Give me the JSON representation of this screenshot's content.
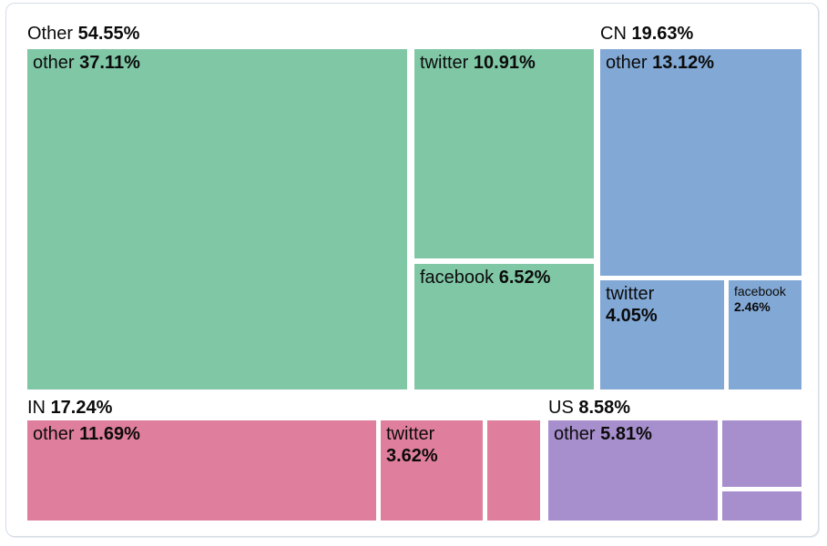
{
  "chart_data": {
    "type": "treemap",
    "title": "",
    "legend": "none",
    "groups": [
      {
        "name": "Other",
        "pct": "54.55%",
        "value": 54.55,
        "color": "#80c7a6",
        "children": [
          {
            "name": "other",
            "pct": "37.11%",
            "value": 37.11
          },
          {
            "name": "twitter",
            "pct": "10.91%",
            "value": 10.91
          },
          {
            "name": "facebook",
            "pct": "6.52%",
            "value": 6.52
          }
        ]
      },
      {
        "name": "CN",
        "pct": "19.63%",
        "value": 19.63,
        "color": "#82a8d5",
        "children": [
          {
            "name": "other",
            "pct": "13.12%",
            "value": 13.12
          },
          {
            "name": "twitter",
            "pct": "4.05%",
            "value": 4.05
          },
          {
            "name": "facebook",
            "pct": "2.46%",
            "value": 2.46
          }
        ]
      },
      {
        "name": "IN",
        "pct": "17.24%",
        "value": 17.24,
        "color": "#e07f9d",
        "children": [
          {
            "name": "other",
            "pct": "11.69%",
            "value": 11.69
          },
          {
            "name": "twitter",
            "pct": "3.62%",
            "value": 3.62
          },
          {
            "name": "",
            "pct": ""
          }
        ]
      },
      {
        "name": "US",
        "pct": "8.58%",
        "value": 8.58,
        "color": "#a78ecd",
        "children": [
          {
            "name": "other",
            "pct": "5.81%",
            "value": 5.81
          },
          {
            "name": "",
            "pct": ""
          },
          {
            "name": "",
            "pct": ""
          }
        ]
      }
    ]
  }
}
